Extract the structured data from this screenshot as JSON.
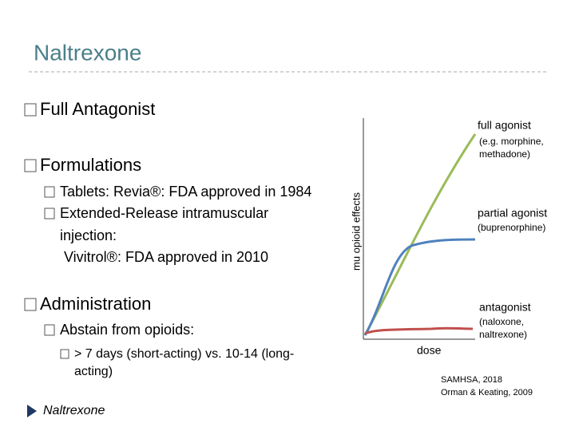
{
  "header": {
    "title": "Naltrexone"
  },
  "bullets": [
    {
      "text": "Full Antagonist"
    },
    {
      "text": "Formulations",
      "items": [
        {
          "lines": [
            "Tablets: Revia®: FDA approved in 1984"
          ]
        },
        {
          "lines": [
            "Extended-Release intramuscular",
            "injection:",
            "Vivitrol®: FDA approved in 2010"
          ]
        }
      ]
    },
    {
      "text": "Administration",
      "items": [
        {
          "lines": [
            "Abstain from opioids:"
          ],
          "items": [
            {
              "lines": [
                "> 7 days (short-acting) vs. 10-14 (long-",
                "acting)"
              ]
            }
          ]
        }
      ]
    }
  ],
  "figure": {
    "y_label": "mu opioid effects",
    "x_label": "dose",
    "curves": [
      {
        "name": "full agonist",
        "examples": [
          "(e.g. morphine,",
          "methadone)"
        ]
      },
      {
        "name": "partial agonist",
        "examples": [
          "(buprenorphine)"
        ]
      },
      {
        "name": "antagonist",
        "examples": [
          "(naloxone,",
          "naltrexone)"
        ]
      }
    ],
    "sources": [
      "SAMHSA, 2018",
      "Orman & Keating, 2009"
    ]
  },
  "footer": {
    "link": "Naltrexone"
  }
}
